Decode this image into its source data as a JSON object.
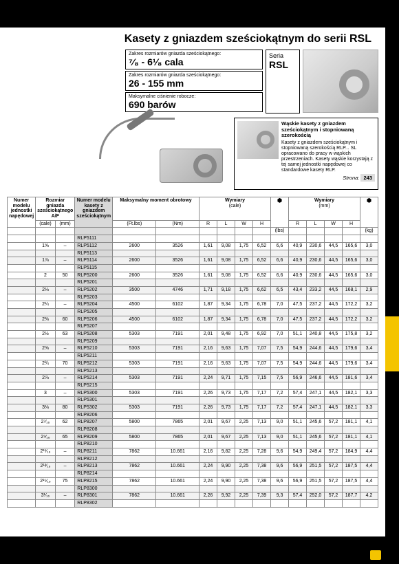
{
  "title": "Kasety z gniazdem sześciokątnym do serii RSL",
  "specs": {
    "range_in_label": "Zakres rozmiarów gniazda sześciokątnego:",
    "range_in_value": "⁷⁄₈ - 6¹⁄₈ cala",
    "range_mm_label": "Zakres rozmiarów gniazda sześciokątnego:",
    "range_mm_value": "26 - 155 mm",
    "pressure_label": "Maksymalne ciśnienie robocze:",
    "pressure_value": "690 barów"
  },
  "series": {
    "pre": "Seria",
    "name": "RSL"
  },
  "note": {
    "heading": "Wąskie kasety z gniazdem sześciokątnym i stopniowaną szerokością",
    "body": "Kasety z gniazdem sześciokątnym i stopniowaną szerokością RLP... SL opracowano do pracy w wąskich przestrzeniach. Kasety wąskie korzystają z tej samej jednostki napędowej co standardowe kasety RLP.",
    "page_label": "Strona:",
    "page_num": "243"
  },
  "colors": {
    "accent": "#f4c400",
    "cassette_bg": "#d9d9d9",
    "row_alt": "#f2f2f2",
    "border": "#888888"
  },
  "typography": {
    "body_pt": 7,
    "title_pt": 16,
    "spec_val_pt": 14
  },
  "head": {
    "c1": "Numer modelu jednostki napędowej",
    "c2": "Rozmiar gniazda sześciokątnego A/F",
    "c3": "Numer modelu kasety z gniazdem sześciokątnym",
    "c4": "Maksymalny moment obrotowy",
    "c5": "Wymiary",
    "c5u": "(cale)",
    "c7": "Wymiary",
    "c7u": "(mm)",
    "sub": {
      "in": "(cale)",
      "mm": "(mm)",
      "ftlbs": "(Ft.lbs)",
      "nm": "(Nm)",
      "R": "R",
      "L": "L",
      "W": "W",
      "H": "H",
      "lbs": "(lbs)",
      "kg": "(kg)"
    }
  },
  "rows": [
    {
      "in": "",
      "mm": "",
      "model": "RLP5111",
      "ftlbs": "",
      "nm": "",
      "Ri": "",
      "Li": "",
      "Wi": "",
      "Hi": "",
      "lbs": "",
      "Rm": "",
      "Lm": "",
      "Wm": "",
      "Hm": "",
      "kg": ""
    },
    {
      "in": "1⅝",
      "mm": "–",
      "model": "RLP5112",
      "ftlbs": "2600",
      "nm": "3526",
      "Ri": "1,61",
      "Li": "9,08",
      "Wi": "1,75",
      "Hi": "6,52",
      "lbs": "6,6",
      "Rm": "40,9",
      "Lm": "230,6",
      "Wm": "44,5",
      "Hm": "165,6",
      "kg": "3,0"
    },
    {
      "in": "",
      "mm": "",
      "model": "RLP5113",
      "ftlbs": "",
      "nm": "",
      "Ri": "",
      "Li": "",
      "Wi": "",
      "Hi": "",
      "lbs": "",
      "Rm": "",
      "Lm": "",
      "Wm": "",
      "Hm": "",
      "kg": ""
    },
    {
      "in": "1⅞",
      "mm": "–",
      "model": "RLP5114",
      "ftlbs": "2600",
      "nm": "3526",
      "Ri": "1,61",
      "Li": "9,08",
      "Wi": "1,75",
      "Hi": "6,52",
      "lbs": "6,6",
      "Rm": "40,9",
      "Lm": "230,6",
      "Wm": "44,5",
      "Hm": "165,6",
      "kg": "3,0"
    },
    {
      "in": "",
      "mm": "",
      "model": "RLP5115",
      "ftlbs": "",
      "nm": "",
      "Ri": "",
      "Li": "",
      "Wi": "",
      "Hi": "",
      "lbs": "",
      "Rm": "",
      "Lm": "",
      "Wm": "",
      "Hm": "",
      "kg": ""
    },
    {
      "in": "2",
      "mm": "50",
      "model": "RLP5200",
      "ftlbs": "2600",
      "nm": "3526",
      "Ri": "1,61",
      "Li": "9,08",
      "Wi": "1,75",
      "Hi": "6,52",
      "lbs": "6,6",
      "Rm": "40,9",
      "Lm": "230,6",
      "Wm": "44,5",
      "Hm": "165,6",
      "kg": "3,0"
    },
    {
      "in": "",
      "mm": "",
      "model": "RLP5201",
      "ftlbs": "",
      "nm": "",
      "Ri": "",
      "Li": "",
      "Wi": "",
      "Hi": "",
      "lbs": "",
      "Rm": "",
      "Lm": "",
      "Wm": "",
      "Hm": "",
      "kg": ""
    },
    {
      "in": "2⅛",
      "mm": "–",
      "model": "RLP5202",
      "ftlbs": "3500",
      "nm": "4746",
      "Ri": "1,71",
      "Li": "9,18",
      "Wi": "1,75",
      "Hi": "6,62",
      "lbs": "6,5",
      "Rm": "43,4",
      "Lm": "233,2",
      "Wm": "44,5",
      "Hm": "168,1",
      "kg": "2,9"
    },
    {
      "in": "",
      "mm": "",
      "model": "RLP5203",
      "ftlbs": "",
      "nm": "",
      "Ri": "",
      "Li": "",
      "Wi": "",
      "Hi": "",
      "lbs": "",
      "Rm": "",
      "Lm": "",
      "Wm": "",
      "Hm": "",
      "kg": ""
    },
    {
      "in": "2¼",
      "mm": "–",
      "model": "RLP5204",
      "ftlbs": "4500",
      "nm": "6102",
      "Ri": "1,87",
      "Li": "9,34",
      "Wi": "1,75",
      "Hi": "6,78",
      "lbs": "7,0",
      "Rm": "47,5",
      "Lm": "237,2",
      "Wm": "44,5",
      "Hm": "172,2",
      "kg": "3,2"
    },
    {
      "in": "",
      "mm": "",
      "model": "RLP5205",
      "ftlbs": "",
      "nm": "",
      "Ri": "",
      "Li": "",
      "Wi": "",
      "Hi": "",
      "lbs": "",
      "Rm": "",
      "Lm": "",
      "Wm": "",
      "Hm": "",
      "kg": ""
    },
    {
      "in": "2⅜",
      "mm": "60",
      "model": "RLP5206",
      "ftlbs": "4500",
      "nm": "6102",
      "Ri": "1,87",
      "Li": "9,34",
      "Wi": "1,75",
      "Hi": "6,78",
      "lbs": "7,0",
      "Rm": "47,5",
      "Lm": "237,2",
      "Wm": "44,5",
      "Hm": "172,2",
      "kg": "3,2"
    },
    {
      "in": "",
      "mm": "",
      "model": "RLP5207",
      "ftlbs": "",
      "nm": "",
      "Ri": "",
      "Li": "",
      "Wi": "",
      "Hi": "",
      "lbs": "",
      "Rm": "",
      "Lm": "",
      "Wm": "",
      "Hm": "",
      "kg": ""
    },
    {
      "in": "2½",
      "mm": "63",
      "model": "RLP5208",
      "ftlbs": "5303",
      "nm": "7191",
      "Ri": "2,01",
      "Li": "9,48",
      "Wi": "1,75",
      "Hi": "6,92",
      "lbs": "7,0",
      "Rm": "51,1",
      "Lm": "240,8",
      "Wm": "44,5",
      "Hm": "175,8",
      "kg": "3,2"
    },
    {
      "in": "",
      "mm": "",
      "model": "RLP5209",
      "ftlbs": "",
      "nm": "",
      "Ri": "",
      "Li": "",
      "Wi": "",
      "Hi": "",
      "lbs": "",
      "Rm": "",
      "Lm": "",
      "Wm": "",
      "Hm": "",
      "kg": ""
    },
    {
      "in": "2⅝",
      "mm": "–",
      "model": "RLP5210",
      "ftlbs": "5303",
      "nm": "7191",
      "Ri": "2,16",
      "Li": "9,63",
      "Wi": "1,75",
      "Hi": "7,07",
      "lbs": "7,5",
      "Rm": "54,9",
      "Lm": "244,6",
      "Wm": "44,5",
      "Hm": "179,6",
      "kg": "3,4"
    },
    {
      "in": "",
      "mm": "",
      "model": "RLP5211",
      "ftlbs": "",
      "nm": "",
      "Ri": "",
      "Li": "",
      "Wi": "",
      "Hi": "",
      "lbs": "",
      "Rm": "",
      "Lm": "",
      "Wm": "",
      "Hm": "",
      "kg": ""
    },
    {
      "in": "2¾",
      "mm": "70",
      "model": "RLP5212",
      "ftlbs": "5303",
      "nm": "7191",
      "Ri": "2,16",
      "Li": "9,63",
      "Wi": "1,75",
      "Hi": "7,07",
      "lbs": "7,5",
      "Rm": "54,9",
      "Lm": "244,6",
      "Wm": "44,5",
      "Hm": "179,6",
      "kg": "3,4"
    },
    {
      "in": "",
      "mm": "",
      "model": "RLP5213",
      "ftlbs": "",
      "nm": "",
      "Ri": "",
      "Li": "",
      "Wi": "",
      "Hi": "",
      "lbs": "",
      "Rm": "",
      "Lm": "",
      "Wm": "",
      "Hm": "",
      "kg": ""
    },
    {
      "in": "2⅞",
      "mm": "–",
      "model": "RLP5214",
      "ftlbs": "5303",
      "nm": "7191",
      "Ri": "2,24",
      "Li": "9,71",
      "Wi": "1,75",
      "Hi": "7,15",
      "lbs": "7,5",
      "Rm": "56,9",
      "Lm": "246,6",
      "Wm": "44,5",
      "Hm": "181,6",
      "kg": "3,4"
    },
    {
      "in": "",
      "mm": "",
      "model": "RLP5215",
      "ftlbs": "",
      "nm": "",
      "Ri": "",
      "Li": "",
      "Wi": "",
      "Hi": "",
      "lbs": "",
      "Rm": "",
      "Lm": "",
      "Wm": "",
      "Hm": "",
      "kg": ""
    },
    {
      "in": "3",
      "mm": "–",
      "model": "RLP5300",
      "ftlbs": "5303",
      "nm": "7191",
      "Ri": "2,26",
      "Li": "9,73",
      "Wi": "1,75",
      "Hi": "7,17",
      "lbs": "7,2",
      "Rm": "57,4",
      "Lm": "247,1",
      "Wm": "44,5",
      "Hm": "182,1",
      "kg": "3,3"
    },
    {
      "in": "",
      "mm": "",
      "model": "RLP5301",
      "ftlbs": "",
      "nm": "",
      "Ri": "",
      "Li": "",
      "Wi": "",
      "Hi": "",
      "lbs": "",
      "Rm": "",
      "Lm": "",
      "Wm": "",
      "Hm": "",
      "kg": ""
    },
    {
      "in": "3⅛",
      "mm": "80",
      "model": "RLP5302",
      "ftlbs": "5303",
      "nm": "7191",
      "Ri": "2,26",
      "Li": "9,73",
      "Wi": "1,75",
      "Hi": "7,17",
      "lbs": "7,2",
      "Rm": "57,4",
      "Lm": "247,1",
      "Wm": "44,5",
      "Hm": "182,1",
      "kg": "3,3"
    },
    {
      "in": "",
      "mm": "",
      "model": "RLP8206",
      "ftlbs": "",
      "nm": "",
      "Ri": "",
      "Li": "",
      "Wi": "",
      "Hi": "",
      "lbs": "",
      "Rm": "",
      "Lm": "",
      "Wm": "",
      "Hm": "",
      "kg": ""
    },
    {
      "in": "2⁷⁄₁₆",
      "mm": "62",
      "model": "RLP8207",
      "ftlbs": "5800",
      "nm": "7865",
      "Ri": "2,01",
      "Li": "9,67",
      "Wi": "2,25",
      "Hi": "7,13",
      "lbs": "9,0",
      "Rm": "51,1",
      "Lm": "245,6",
      "Wm": "57,2",
      "Hm": "181,1",
      "kg": "4,1"
    },
    {
      "in": "",
      "mm": "",
      "model": "RLP8208",
      "ftlbs": "",
      "nm": "",
      "Ri": "",
      "Li": "",
      "Wi": "",
      "Hi": "",
      "lbs": "",
      "Rm": "",
      "Lm": "",
      "Wm": "",
      "Hm": "",
      "kg": ""
    },
    {
      "in": "2⁹⁄₁₆",
      "mm": "65",
      "model": "RLP8209",
      "ftlbs": "5800",
      "nm": "7865",
      "Ri": "2,01",
      "Li": "9,67",
      "Wi": "2,25",
      "Hi": "7,13",
      "lbs": "9,0",
      "Rm": "51,1",
      "Lm": "245,6",
      "Wm": "57,2",
      "Hm": "181,1",
      "kg": "4,1"
    },
    {
      "in": "",
      "mm": "",
      "model": "RLP8210",
      "ftlbs": "",
      "nm": "",
      "Ri": "",
      "Li": "",
      "Wi": "",
      "Hi": "",
      "lbs": "",
      "Rm": "",
      "Lm": "",
      "Wm": "",
      "Hm": "",
      "kg": ""
    },
    {
      "in": "2¹¹⁄₁₆",
      "mm": "–",
      "model": "RLP8211",
      "ftlbs": "7862",
      "nm": "10.661",
      "Ri": "2,16",
      "Li": "9,82",
      "Wi": "2,25",
      "Hi": "7,28",
      "lbs": "9,6",
      "Rm": "54,9",
      "Lm": "249,4",
      "Wm": "57,2",
      "Hm": "184,9",
      "kg": "4,4"
    },
    {
      "in": "",
      "mm": "",
      "model": "RLP8212",
      "ftlbs": "",
      "nm": "",
      "Ri": "",
      "Li": "",
      "Wi": "",
      "Hi": "",
      "lbs": "",
      "Rm": "",
      "Lm": "",
      "Wm": "",
      "Hm": "",
      "kg": ""
    },
    {
      "in": "2¹³⁄₁₆",
      "mm": "–",
      "model": "RLP8213",
      "ftlbs": "7862",
      "nm": "10.661",
      "Ri": "2,24",
      "Li": "9,90",
      "Wi": "2,25",
      "Hi": "7,38",
      "lbs": "9,6",
      "Rm": "56,9",
      "Lm": "251,5",
      "Wm": "57,2",
      "Hm": "187,5",
      "kg": "4,4"
    },
    {
      "in": "",
      "mm": "",
      "model": "RLP8214",
      "ftlbs": "",
      "nm": "",
      "Ri": "",
      "Li": "",
      "Wi": "",
      "Hi": "",
      "lbs": "",
      "Rm": "",
      "Lm": "",
      "Wm": "",
      "Hm": "",
      "kg": ""
    },
    {
      "in": "2¹⁵⁄₁₆",
      "mm": "75",
      "model": "RLP8215",
      "ftlbs": "7862",
      "nm": "10.661",
      "Ri": "2,24",
      "Li": "9,90",
      "Wi": "2,25",
      "Hi": "7,38",
      "lbs": "9,6",
      "Rm": "56,9",
      "Lm": "251,5",
      "Wm": "57,2",
      "Hm": "187,5",
      "kg": "4,4"
    },
    {
      "in": "",
      "mm": "",
      "model": "RLP8300",
      "ftlbs": "",
      "nm": "",
      "Ri": "",
      "Li": "",
      "Wi": "",
      "Hi": "",
      "lbs": "",
      "Rm": "",
      "Lm": "",
      "Wm": "",
      "Hm": "",
      "kg": ""
    },
    {
      "in": "3¹⁄₁₆",
      "mm": "–",
      "model": "RLP8301",
      "ftlbs": "7862",
      "nm": "10.661",
      "Ri": "2,26",
      "Li": "9,92",
      "Wi": "2,25",
      "Hi": "7,39",
      "lbs": "9,3",
      "Rm": "57,4",
      "Lm": "252,0",
      "Wm": "57,2",
      "Hm": "187,7",
      "kg": "4,2"
    },
    {
      "in": "",
      "mm": "",
      "model": "RLP8302",
      "ftlbs": "",
      "nm": "",
      "Ri": "",
      "Li": "",
      "Wi": "",
      "Hi": "",
      "lbs": "",
      "Rm": "",
      "Lm": "",
      "Wm": "",
      "Hm": "",
      "kg": ""
    }
  ]
}
